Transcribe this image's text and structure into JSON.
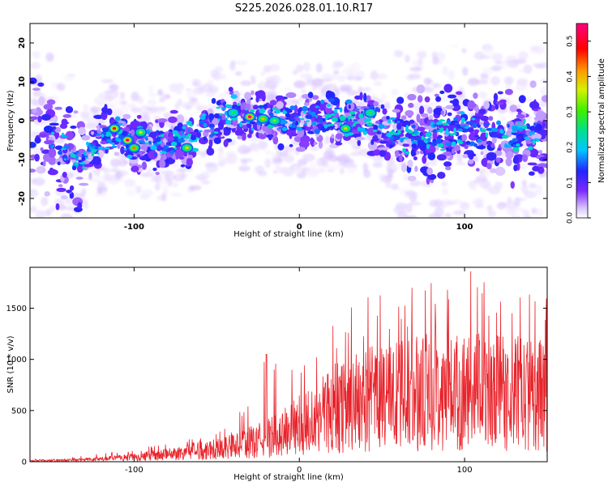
{
  "title": "S225.2026.028.01.10.R17",
  "chart_data": [
    {
      "type": "heatmap",
      "xlabel": "Height of straight line (km)",
      "ylabel": "Frequency (Hz)",
      "xlim": [
        -163,
        150
      ],
      "ylim": [
        -25,
        25
      ],
      "xticks": [
        -100,
        0,
        100
      ],
      "yticks": [
        -20,
        -10,
        0,
        10,
        20
      ],
      "colorbar": {
        "label": "Normalized spectral amplitude",
        "range": [
          0.0,
          0.55
        ],
        "ticks": [
          0.0,
          0.1,
          0.2,
          0.3,
          0.4,
          0.5
        ],
        "colormap": [
          "#ffffff",
          "#d9c4ff",
          "#7a2bff",
          "#2323ff",
          "#00c8ff",
          "#00e08c",
          "#3cf000",
          "#d7f000",
          "#ff9600",
          "#ff0000",
          "#ff0080"
        ]
      },
      "ridge": [
        {
          "x": -163,
          "y": 0
        },
        {
          "x": -145,
          "y": -8
        },
        {
          "x": -130,
          "y": -10
        },
        {
          "x": -115,
          "y": -3
        },
        {
          "x": -100,
          "y": -6
        },
        {
          "x": -80,
          "y": -6
        },
        {
          "x": -60,
          "y": -3
        },
        {
          "x": -40,
          "y": 2
        },
        {
          "x": -20,
          "y": 0
        },
        {
          "x": 0,
          "y": 0
        },
        {
          "x": 20,
          "y": 1
        },
        {
          "x": 40,
          "y": 0
        },
        {
          "x": 55,
          "y": -3
        },
        {
          "x": 70,
          "y": -5
        },
        {
          "x": 90,
          "y": -3
        },
        {
          "x": 110,
          "y": -2
        },
        {
          "x": 130,
          "y": -4
        },
        {
          "x": 150,
          "y": -3
        }
      ],
      "hotspots": [
        {
          "x": -112,
          "y": -2,
          "v": 0.5
        },
        {
          "x": -104,
          "y": -5,
          "v": 0.53
        },
        {
          "x": -100,
          "y": -7,
          "v": 0.45
        },
        {
          "x": -96,
          "y": -3,
          "v": 0.38
        },
        {
          "x": -68,
          "y": -7,
          "v": 0.4
        },
        {
          "x": -40,
          "y": 2,
          "v": 0.3
        },
        {
          "x": -30,
          "y": 1,
          "v": 0.55
        },
        {
          "x": -22,
          "y": 0.5,
          "v": 0.42
        },
        {
          "x": -15,
          "y": 0,
          "v": 0.35
        },
        {
          "x": 28,
          "y": -2,
          "v": 0.4
        },
        {
          "x": 43,
          "y": 2,
          "v": 0.32
        }
      ]
    },
    {
      "type": "line",
      "xlabel": "Height of straight line (km)",
      "ylabel": "SNR (10 * v/v)",
      "xlim": [
        -163,
        150
      ],
      "ylim": [
        0,
        1900
      ],
      "xticks": [
        -100,
        0,
        100
      ],
      "yticks": [
        0,
        500,
        1000,
        1500
      ],
      "color": "#e8232b",
      "envelope": [
        {
          "x": -163,
          "mean": 10,
          "peak": 25
        },
        {
          "x": -140,
          "mean": 15,
          "peak": 40
        },
        {
          "x": -120,
          "mean": 25,
          "peak": 80
        },
        {
          "x": -100,
          "mean": 45,
          "peak": 130
        },
        {
          "x": -80,
          "mean": 70,
          "peak": 180
        },
        {
          "x": -60,
          "mean": 110,
          "peak": 260
        },
        {
          "x": -40,
          "mean": 150,
          "peak": 350
        },
        {
          "x": -20,
          "mean": 220,
          "peak": 1050
        },
        {
          "x": 0,
          "mean": 350,
          "peak": 900
        },
        {
          "x": 20,
          "mean": 520,
          "peak": 1400
        },
        {
          "x": 40,
          "mean": 600,
          "peak": 1650
        },
        {
          "x": 60,
          "mean": 650,
          "peak": 1700
        },
        {
          "x": 80,
          "mean": 680,
          "peak": 1750
        },
        {
          "x": 100,
          "mean": 690,
          "peak": 1900
        },
        {
          "x": 120,
          "mean": 680,
          "peak": 1800
        },
        {
          "x": 150,
          "mean": 650,
          "peak": 1600
        }
      ]
    }
  ]
}
